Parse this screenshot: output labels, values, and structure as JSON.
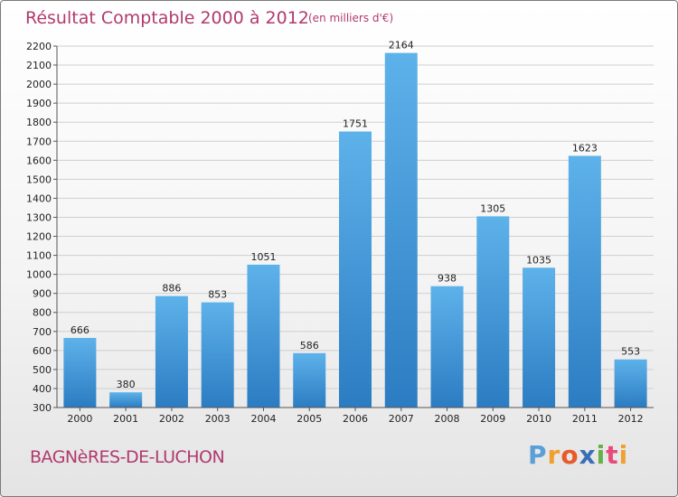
{
  "chart_data": {
    "type": "bar",
    "title": "Résultat Comptable 2000 à 2012",
    "subtitle": "(en milliers d'€)",
    "categories": [
      "2000",
      "2001",
      "2002",
      "2003",
      "2004",
      "2005",
      "2006",
      "2007",
      "2008",
      "2009",
      "2010",
      "2011",
      "2012"
    ],
    "values": [
      666,
      380,
      886,
      853,
      1051,
      586,
      1751,
      2164,
      938,
      1305,
      1035,
      1623,
      553
    ],
    "ylim": [
      300,
      2200
    ],
    "yticks": [
      300,
      400,
      500,
      600,
      700,
      800,
      900,
      1000,
      1100,
      1200,
      1300,
      1400,
      1500,
      1600,
      1700,
      1800,
      1900,
      2000,
      2100,
      2200
    ],
    "grid": true,
    "xlabel": "",
    "ylabel": ""
  },
  "footer": {
    "commune": "BAGNèRES-DE-LUCHON",
    "logo_letters": [
      "P",
      "r",
      "o",
      "x",
      "i",
      "t",
      "i"
    ],
    "logo_colors": [
      "#5a9fd8",
      "#f0a030",
      "#e85a28",
      "#3a6fb8",
      "#66b04a",
      "#e84a7a",
      "#f0a030"
    ]
  },
  "colors": {
    "bar_light": "#5aaee8",
    "bar_dark": "#2a7ec4",
    "grid": "#cfcfcf",
    "accent": "#b03a6e"
  }
}
